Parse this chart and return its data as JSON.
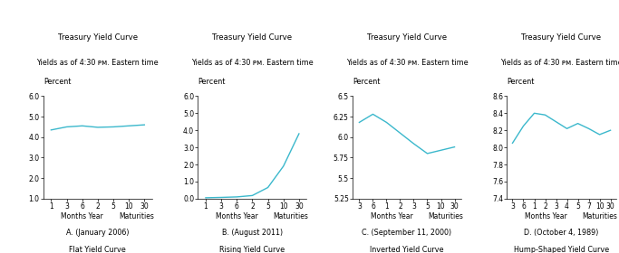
{
  "title": "Treasury Yield Curve",
  "subtitle": "Yields as of 4:30 ᴘᴍ. Eastern time",
  "ylabel": "Percent",
  "line_color": "#3BB8CC",
  "charts": [
    {
      "x_labels": [
        "1",
        "3",
        "6",
        "2",
        "5",
        "10",
        "30"
      ],
      "x_vals": [
        0,
        1,
        2,
        3,
        4,
        5,
        6
      ],
      "y_vals": [
        4.35,
        4.5,
        4.55,
        4.48,
        4.5,
        4.55,
        4.6
      ],
      "ylim": [
        1.0,
        6.0
      ],
      "yticks": [
        1.0,
        2.0,
        3.0,
        4.0,
        5.0,
        6.0
      ],
      "caption1": "A. (January 2006)",
      "caption2": "Flat Yield Curve"
    },
    {
      "x_labels": [
        "1",
        "3",
        "6",
        "2",
        "5",
        "10",
        "30"
      ],
      "x_vals": [
        0,
        1,
        2,
        3,
        4,
        5,
        6
      ],
      "y_vals": [
        0.05,
        0.07,
        0.1,
        0.18,
        0.65,
        1.9,
        3.8
      ],
      "ylim": [
        0.0,
        6.0
      ],
      "yticks": [
        0.0,
        1.0,
        2.0,
        3.0,
        4.0,
        5.0,
        6.0
      ],
      "caption1": "B. (August 2011)",
      "caption2": "Rising Yield Curve"
    },
    {
      "x_labels": [
        "3",
        "6",
        "1",
        "2",
        "3",
        "5",
        "10",
        "30"
      ],
      "x_vals": [
        0,
        1,
        2,
        3,
        4,
        5,
        6,
        7
      ],
      "y_vals": [
        6.18,
        6.28,
        6.18,
        6.05,
        5.92,
        5.8,
        5.84,
        5.88
      ],
      "ylim": [
        5.25,
        6.5
      ],
      "yticks": [
        5.25,
        5.5,
        5.75,
        6.0,
        6.25,
        6.5
      ],
      "caption1": "C. (September 11, 2000)",
      "caption2": "Inverted Yield Curve"
    },
    {
      "x_labels": [
        "3",
        "6",
        "1",
        "2",
        "3",
        "4",
        "5",
        "7",
        "10",
        "30"
      ],
      "x_vals": [
        0,
        1,
        2,
        3,
        4,
        5,
        6,
        7,
        8,
        9
      ],
      "y_vals": [
        8.05,
        8.25,
        8.4,
        8.38,
        8.3,
        8.22,
        8.28,
        8.22,
        8.15,
        8.2
      ],
      "ylim": [
        7.4,
        8.6
      ],
      "yticks": [
        7.4,
        7.6,
        7.8,
        8.0,
        8.2,
        8.4,
        8.6
      ],
      "caption1": "D. (October 4, 1989)",
      "caption2": "Hump-Shaped Yield Curve"
    }
  ]
}
